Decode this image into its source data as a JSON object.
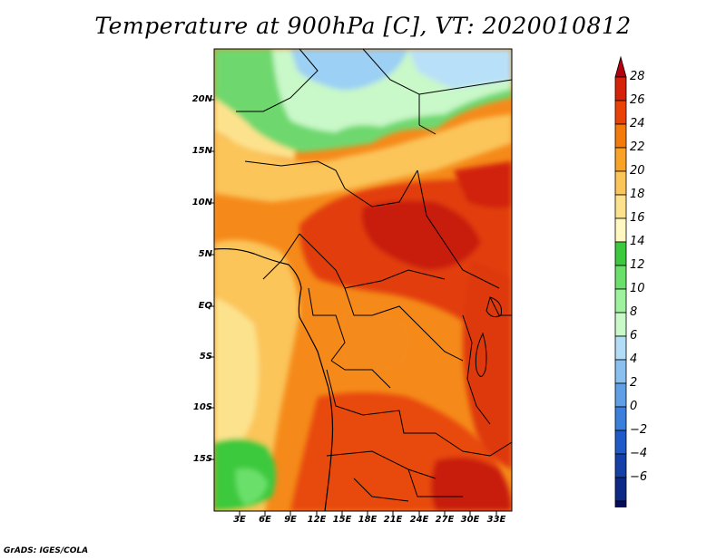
{
  "title": "Temperature at 900hPa [C], VT: 2020010812",
  "credit": "GrADS: IGES/COLA",
  "map": {
    "lat_labels": [
      "20N",
      "15N",
      "10N",
      "5N",
      "EQ",
      "5S",
      "10S",
      "15S"
    ],
    "lon_labels": [
      "3E",
      "6E",
      "9E",
      "12E",
      "15E",
      "18E",
      "21E",
      "24E",
      "27E",
      "30E",
      "33E"
    ]
  },
  "colorbar": {
    "labels": [
      "28",
      "26",
      "24",
      "22",
      "20",
      "18",
      "16",
      "14",
      "12",
      "10",
      "8",
      "6",
      "4",
      "2",
      "0",
      "−2",
      "−4",
      "−6"
    ],
    "colors": [
      "#b4000e",
      "#d62207",
      "#ea4206",
      "#f57a0c",
      "#f9a326",
      "#fbc55a",
      "#fde28d",
      "#fff8c0",
      "#3dc93d",
      "#6ae06a",
      "#9ef29e",
      "#c9f8c9",
      "#b3dcf6",
      "#89c0f0",
      "#5f9fe6",
      "#3a7fdc",
      "#1f5bc8",
      "#1440a8",
      "#0d2886",
      "#050c5c",
      "#e0e0f8"
    ]
  }
}
